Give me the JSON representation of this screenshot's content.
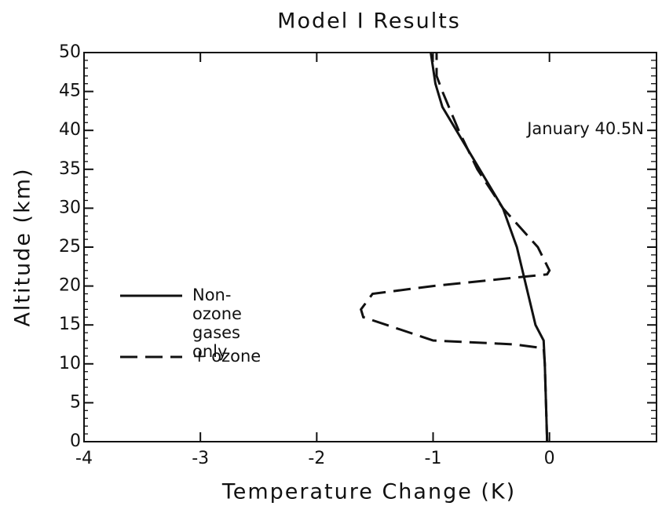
{
  "chart_data": {
    "type": "line",
    "title": "Model I Results",
    "xlabel": "Temperature Change (K)",
    "ylabel": "Altitude (km)",
    "annotation": "January 40.5N",
    "xlim": [
      -4,
      0.92
    ],
    "ylim": [
      0,
      50
    ],
    "xticks": [
      -4,
      -3,
      -2,
      -1,
      0
    ],
    "yticks": [
      0,
      5,
      10,
      15,
      20,
      25,
      30,
      35,
      40,
      45,
      50
    ],
    "series": [
      {
        "name": "Non-ozone gases only",
        "color": "#111111",
        "dash": false,
        "y": [
          0,
          5,
          10,
          13,
          15,
          20,
          25,
          30,
          35,
          40,
          43,
          46,
          50
        ],
        "values": [
          -0.02,
          -0.03,
          -0.04,
          -0.05,
          -0.12,
          -0.2,
          -0.28,
          -0.4,
          -0.6,
          -0.8,
          -0.92,
          -0.98,
          -1.02
        ]
      },
      {
        "name": "+ ozone",
        "color": "#111111",
        "dash": true,
        "y": [
          0,
          10,
          12,
          12.5,
          13,
          16,
          17,
          19,
          20,
          21,
          21.5,
          22,
          25,
          30,
          35,
          40,
          45,
          47,
          50
        ],
        "values": [
          -0.02,
          -0.04,
          -0.05,
          -0.3,
          -1.0,
          -1.6,
          -1.62,
          -1.52,
          -1.0,
          -0.35,
          -0.02,
          0.0,
          -0.1,
          -0.4,
          -0.62,
          -0.78,
          -0.92,
          -0.97,
          -0.97
        ]
      }
    ]
  }
}
